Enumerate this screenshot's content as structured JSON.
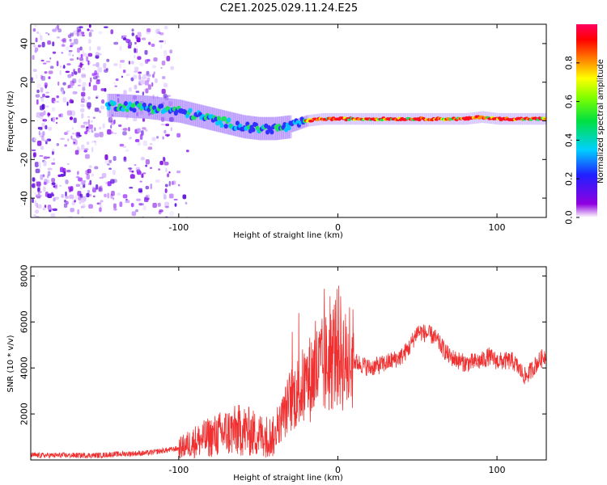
{
  "figure_title": "C2E1.2025.029.11.24.E25",
  "chart_data": [
    {
      "type": "heatmap",
      "xlabel": "Height of straight line (km)",
      "ylabel": "Frequency (Hz)",
      "xlim": [
        -193,
        131
      ],
      "ylim": [
        -50,
        50
      ],
      "xticks": [
        -100,
        0,
        100
      ],
      "yticks": [
        -40,
        -20,
        0,
        20,
        40
      ],
      "colorbar": {
        "label": "Normalized spectral amplitude",
        "range": [
          0.0,
          1.0
        ],
        "ticks": [
          0.0,
          0.2,
          0.4,
          0.6,
          0.8
        ]
      },
      "ridge": {
        "description_points_x": [
          -140,
          -120,
          -100,
          -80,
          -60,
          -50,
          -40,
          -30,
          -20,
          -10,
          0,
          20,
          50,
          80,
          90,
          100,
          110,
          131
        ],
        "frequency_hz": [
          8,
          7,
          5,
          1,
          -3,
          -4,
          -4,
          -3,
          0,
          1,
          1,
          1,
          1,
          1,
          2,
          1,
          1,
          1
        ]
      },
      "noise_region_x": [
        -193,
        -105
      ]
    },
    {
      "type": "line",
      "xlabel": "Height of straight line (km)",
      "ylabel": "SNR (10 * v/v)",
      "xlim": [
        -193,
        131
      ],
      "ylim": [
        0,
        8400
      ],
      "xticks": [
        -100,
        0,
        100
      ],
      "yticks": [
        2000,
        4000,
        6000,
        8000
      ],
      "color": "#f03030",
      "series_envelope": {
        "x": [
          -193,
          -150,
          -140,
          -120,
          -100,
          -90,
          -80,
          -70,
          -60,
          -50,
          -40,
          -35,
          -30,
          -20,
          -15,
          -10,
          -5,
          0,
          5,
          10,
          20,
          30,
          40,
          45,
          50,
          60,
          70,
          80,
          90,
          95,
          100,
          110,
          118,
          125,
          131
        ],
        "y": [
          200,
          200,
          250,
          300,
          500,
          800,
          1000,
          1200,
          1300,
          1100,
          1000,
          1800,
          2600,
          3300,
          3800,
          4000,
          4300,
          5000,
          4200,
          4300,
          4000,
          4200,
          4500,
          4900,
          5600,
          5400,
          4500,
          4200,
          4300,
          4500,
          4300,
          4300,
          3600,
          4200,
          4600
        ]
      }
    }
  ]
}
